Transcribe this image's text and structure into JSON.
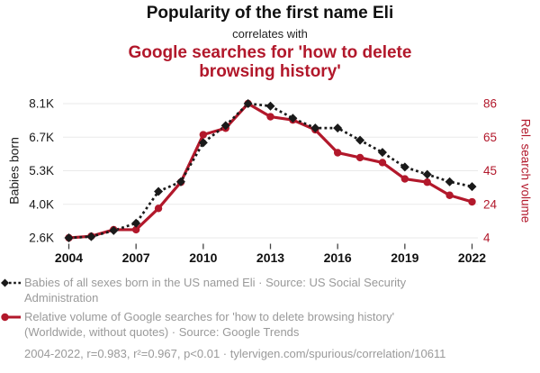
{
  "header": {
    "title": "Popularity of the first name Eli",
    "connector": "correlates with",
    "title_secondary": "Google searches for 'how to delete browsing history'"
  },
  "chart_data": {
    "type": "line",
    "x": [
      2004,
      2005,
      2006,
      2007,
      2008,
      2009,
      2010,
      2011,
      2012,
      2013,
      2014,
      2015,
      2016,
      2017,
      2018,
      2019,
      2020,
      2021,
      2022
    ],
    "series": [
      {
        "name": "Babies of all sexes born in the US named Eli",
        "axis": "left",
        "unit": "thousands of babies",
        "color": "#1a1a1a",
        "line_style": "dashed",
        "marker": "diamond",
        "values": [
          2.6,
          2.65,
          2.9,
          3.2,
          4.5,
          4.9,
          6.5,
          7.2,
          8.1,
          8.0,
          7.5,
          7.1,
          7.1,
          6.6,
          6.1,
          5.5,
          5.2,
          4.9,
          4.7
        ]
      },
      {
        "name": "Relative volume of Google searches for 'how to delete browsing history'",
        "axis": "right",
        "unit": "relative search volume",
        "color": "#b2182b",
        "line_style": "solid",
        "marker": "circle",
        "values": [
          4,
          5,
          9,
          9,
          22,
          38,
          67,
          71,
          86,
          78,
          76,
          70,
          56,
          53,
          50,
          40,
          38,
          30,
          26
        ]
      }
    ],
    "xaxis": {
      "tick_labels": [
        "2004",
        "2007",
        "2010",
        "2013",
        "2016",
        "2019",
        "2022"
      ]
    },
    "yaxis_left": {
      "label": "Babies born",
      "min": 2.6,
      "max": 8.1,
      "tick_labels": [
        "2.6K",
        "4.0K",
        "5.3K",
        "6.7K",
        "8.1K"
      ]
    },
    "yaxis_right": {
      "label": "Rel. search volume",
      "min": 4,
      "max": 86,
      "tick_labels": [
        "4",
        "24",
        "45",
        "65",
        "86"
      ]
    },
    "grid": "horizontal gridlines on",
    "legend_position": "below chart"
  },
  "legend": [
    {
      "marker": "black-diamond-dashed-line",
      "text": "Babies of all sexes born in the US named Eli · Source: US Social Security Administration"
    },
    {
      "marker": "red-circle-solid-line",
      "text": "Relative volume of Google searches for 'how to delete browsing history' (Worldwide, without quotes) · Source: Google Trends"
    }
  ],
  "footer": {
    "text": "2004-2022, r=0.983, r²=0.967, p<0.01 · tylervigen.com/spurious/correlation/10611"
  },
  "colors": {
    "accent_red": "#b2182b",
    "series_black": "#1a1a1a",
    "text_gray": "#9a9a9a",
    "grid": "#eaeaea",
    "background": "#ffffff"
  }
}
